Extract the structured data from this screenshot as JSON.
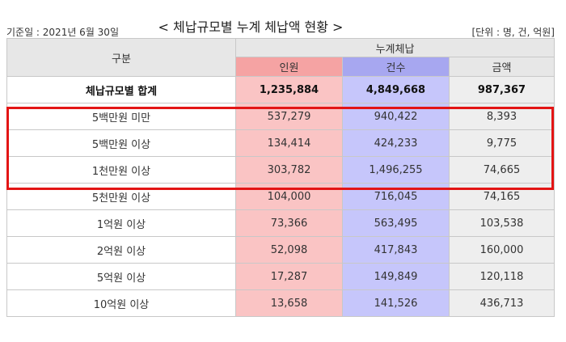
{
  "header": {
    "reference_date": "기준일 : 2021년 6월 30일",
    "title": "< 체납규모별 누계 체납액 현황 >",
    "unit": "[단위 : 명, 건, 억원]"
  },
  "table": {
    "group_header": "누계체납",
    "col_category": "구분",
    "col_persons": "인원",
    "col_cases": "건수",
    "col_amount": "금액",
    "total": {
      "label": "체납규모별 합계",
      "persons": "1,235,884",
      "cases": "4,849,668",
      "amount": "987,367"
    },
    "rows": [
      {
        "label": "5백만원 미만",
        "persons": "537,279",
        "cases": "940,422",
        "amount": "8,393"
      },
      {
        "label": "5백만원 이상",
        "persons": "134,414",
        "cases": "424,233",
        "amount": "9,775"
      },
      {
        "label": "1천만원 이상",
        "persons": "303,782",
        "cases": "1,496,255",
        "amount": "74,665"
      },
      {
        "label": "5천만원 이상",
        "persons": "104,000",
        "cases": "716,045",
        "amount": "74,165"
      },
      {
        "label": "1억원 이상",
        "persons": "73,366",
        "cases": "563,495",
        "amount": "103,538"
      },
      {
        "label": "2억원 이상",
        "persons": "52,098",
        "cases": "417,843",
        "amount": "160,000"
      },
      {
        "label": "5억원 이상",
        "persons": "17,287",
        "cases": "149,849",
        "amount": "120,118"
      },
      {
        "label": "10억원 이상",
        "persons": "13,658",
        "cases": "141,526",
        "amount": "436,713"
      }
    ]
  },
  "colors": {
    "persons_header": "#f5a3a3",
    "persons_cell": "#fac4c4",
    "cases_header": "#a7a7f0",
    "cases_cell": "#c6c6fb",
    "highlight_box": "#e31515"
  }
}
